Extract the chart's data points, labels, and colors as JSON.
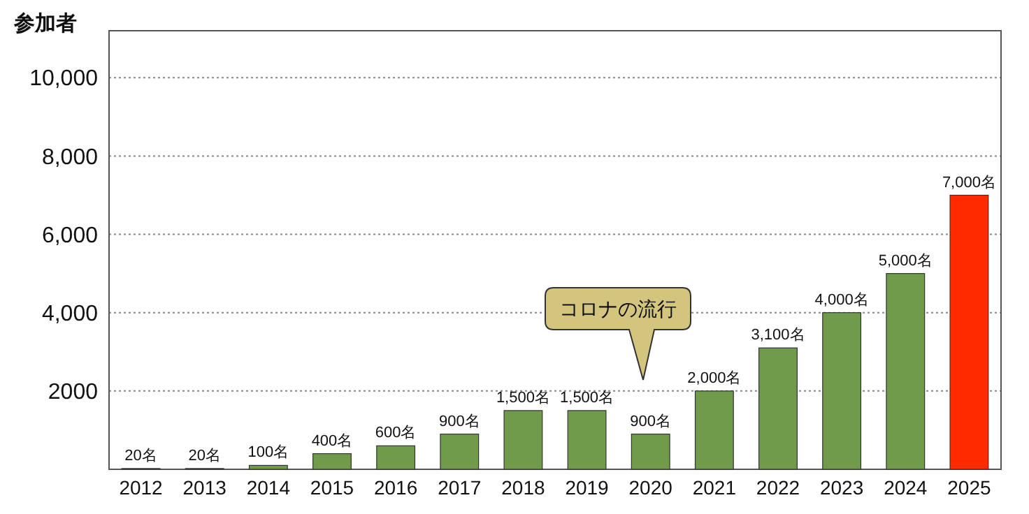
{
  "chart_data": {
    "type": "bar",
    "ylabel": "参加者",
    "categories": [
      "2012",
      "2013",
      "2014",
      "2015",
      "2016",
      "2017",
      "2018",
      "2019",
      "2020",
      "2021",
      "2022",
      "2023",
      "2024",
      "2025"
    ],
    "values": [
      20,
      20,
      100,
      400,
      600,
      900,
      1500,
      1500,
      900,
      2000,
      3100,
      4000,
      5000,
      7000
    ],
    "colors": [
      "#6f9b4b",
      "#6f9b4b",
      "#6f9b4b",
      "#6f9b4b",
      "#6f9b4b",
      "#6f9b4b",
      "#6f9b4b",
      "#6f9b4b",
      "#6f9b4b",
      "#6f9b4b",
      "#6f9b4b",
      "#6f9b4b",
      "#6f9b4b",
      "#ff2a00"
    ],
    "value_labels": [
      "20名",
      "20名",
      "100名",
      "400名",
      "600名",
      "900名",
      "1,500名",
      "1,500名",
      "900名",
      "2,000名",
      "3,100名",
      "4,000名",
      "5,000名",
      "7,000名"
    ],
    "ylim": [
      0,
      11200
    ],
    "yticks": [
      {
        "value": 2000,
        "label": "2000"
      },
      {
        "value": 4000,
        "label": "4,000"
      },
      {
        "value": 6000,
        "label": "6,000"
      },
      {
        "value": 8000,
        "label": "8,000"
      },
      {
        "value": 10000,
        "label": "10,000"
      }
    ],
    "grid": "y",
    "annotations": [
      "コロナの流行"
    ]
  }
}
